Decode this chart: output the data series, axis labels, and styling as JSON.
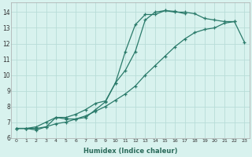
{
  "xlabel": "Humidex (Indice chaleur)",
  "background_color": "#d8f2ee",
  "grid_color": "#b8ddd8",
  "line_color": "#2a7a6a",
  "xlim": [
    -0.5,
    23.5
  ],
  "ylim": [
    6.0,
    14.6
  ],
  "xticks": [
    0,
    1,
    2,
    3,
    4,
    5,
    6,
    7,
    8,
    9,
    10,
    11,
    12,
    13,
    14,
    15,
    16,
    17,
    18,
    19,
    20,
    21,
    22,
    23
  ],
  "yticks": [
    6,
    7,
    8,
    9,
    10,
    11,
    12,
    13,
    14
  ],
  "series": [
    {
      "x": [
        0,
        1,
        2,
        3,
        4,
        5,
        6,
        7,
        8,
        9,
        10,
        11,
        12,
        13,
        14,
        15,
        16,
        17,
        18,
        19,
        20,
        21,
        22,
        23
      ],
      "y": [
        6.6,
        6.6,
        6.5,
        6.7,
        7.3,
        7.2,
        7.2,
        7.3,
        7.8,
        8.3,
        9.5,
        11.5,
        13.2,
        13.85,
        13.85,
        14.1,
        14.05,
        13.9,
        null,
        null,
        null,
        null,
        null,
        null
      ]
    },
    {
      "x": [
        0,
        1,
        2,
        3,
        4,
        5,
        6,
        7,
        8,
        9,
        10,
        11,
        12,
        13,
        14,
        15,
        16,
        17,
        18,
        19,
        20,
        21,
        22,
        23
      ],
      "y": [
        6.6,
        6.6,
        6.7,
        7.0,
        7.3,
        7.3,
        7.5,
        7.8,
        8.2,
        8.35,
        9.5,
        10.3,
        11.5,
        13.5,
        14.0,
        14.1,
        14.0,
        14.0,
        13.9,
        13.6,
        13.5,
        13.4,
        13.4,
        null
      ]
    },
    {
      "x": [
        0,
        1,
        2,
        3,
        4,
        5,
        6,
        7,
        8,
        9,
        10,
        11,
        12,
        13,
        14,
        15,
        16,
        17,
        18,
        19,
        20,
        21,
        22,
        23
      ],
      "y": [
        6.6,
        6.6,
        6.6,
        6.7,
        6.9,
        7.0,
        7.2,
        7.4,
        7.7,
        8.0,
        8.4,
        8.8,
        9.3,
        10.0,
        10.6,
        11.2,
        11.8,
        12.3,
        12.7,
        12.9,
        13.0,
        13.3,
        13.4,
        12.1
      ]
    }
  ]
}
